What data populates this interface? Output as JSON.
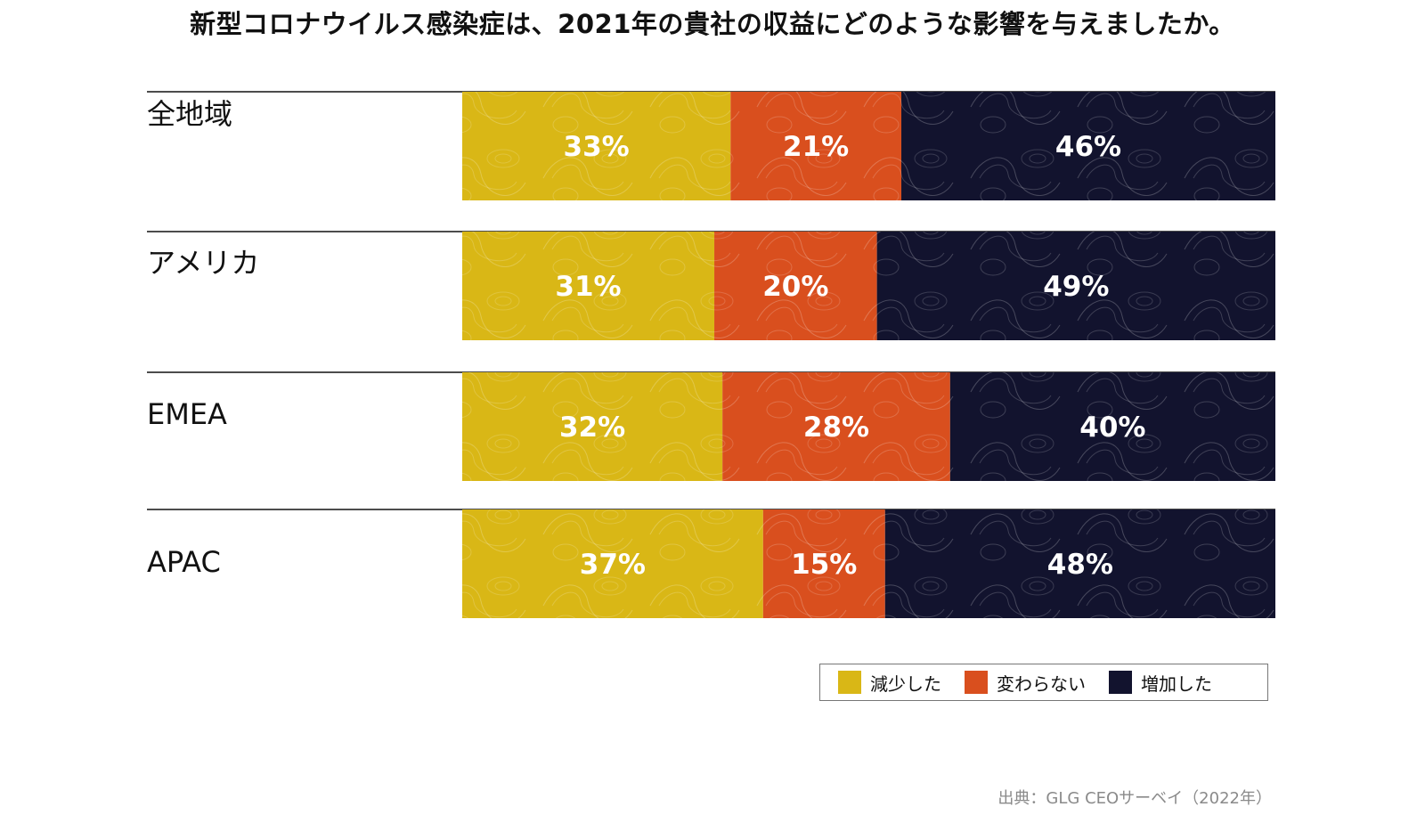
{
  "chart_data": {
    "type": "bar",
    "orientation": "horizontal",
    "stacked": true,
    "percent_scale": true,
    "title": "新型コロナウイルス感染症は、2021年の貴社の収益にどのような影響を与えましたか。",
    "categories": [
      "全地域",
      "アメリカ",
      "EMEA",
      "APAC"
    ],
    "series": [
      {
        "name": "減少した",
        "color": "#D9B716",
        "values": [
          33,
          31,
          32,
          37
        ]
      },
      {
        "name": "変わらない",
        "color": "#D94F1E",
        "values": [
          21,
          20,
          28,
          15
        ]
      },
      {
        "name": "増加した",
        "color": "#12132E",
        "values": [
          46,
          49,
          40,
          48
        ]
      }
    ],
    "value_suffix": "%",
    "xlim": [
      0,
      100
    ],
    "grid": false,
    "legend_position": "bottom-right",
    "source": "出典：GLG CEOサーベイ（2022年）"
  }
}
